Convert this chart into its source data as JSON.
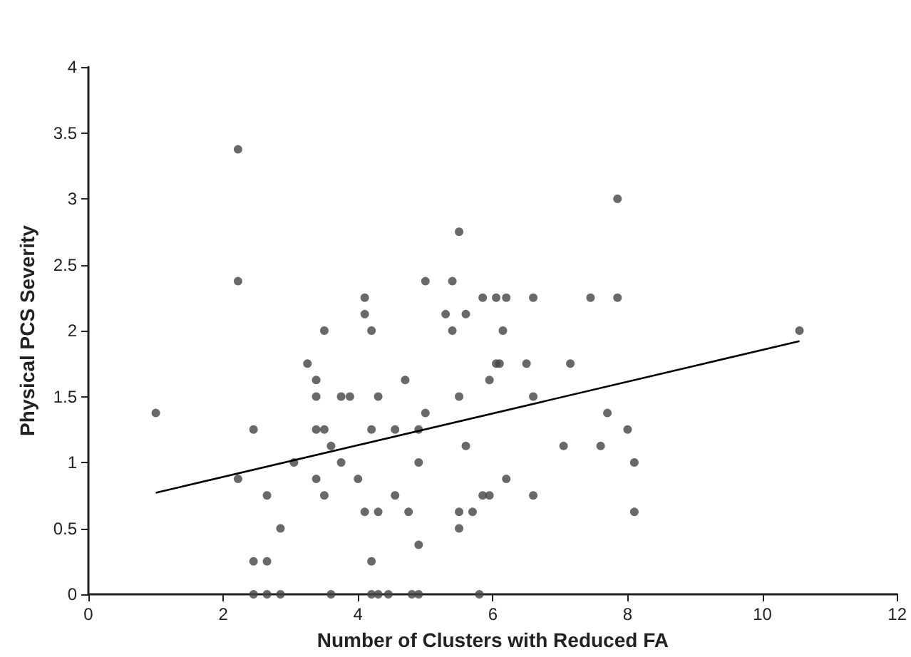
{
  "chart_data": {
    "type": "scatter",
    "xlabel": "Number of Clusters with Reduced FA",
    "ylabel": "Physical PCS Severity",
    "xlim": [
      0,
      12
    ],
    "xticks": [
      0,
      2,
      4,
      6,
      8,
      10,
      12
    ],
    "ylim": [
      0,
      4
    ],
    "yticks": [
      0,
      0.5,
      1,
      1.5,
      2,
      2.5,
      3,
      3.5,
      4
    ],
    "grid": false,
    "marker": "circle",
    "series": [
      {
        "color": "#444444",
        "x": [
          1.0,
          2.22,
          2.22,
          2.22,
          2.45,
          2.45,
          2.45,
          2.65,
          2.65,
          2.65,
          2.85,
          2.85,
          3.05,
          3.25,
          3.38,
          3.38,
          3.38,
          3.38,
          3.5,
          3.5,
          3.5,
          3.6,
          3.6,
          3.75,
          3.75,
          3.88,
          4.0,
          4.1,
          4.1,
          4.1,
          4.2,
          4.2,
          4.2,
          4.2,
          4.3,
          4.3,
          4.3,
          4.45,
          4.55,
          4.55,
          4.7,
          4.75,
          4.8,
          4.9,
          4.9,
          4.9,
          4.9,
          5.0,
          5.0,
          5.3,
          5.4,
          5.4,
          5.5,
          5.5,
          5.5,
          5.5,
          5.6,
          5.6,
          5.7,
          5.8,
          5.85,
          5.85,
          5.95,
          5.95,
          6.05,
          6.05,
          6.1,
          6.15,
          6.2,
          6.2,
          6.5,
          6.6,
          6.6,
          6.6,
          7.05,
          7.15,
          7.45,
          7.6,
          7.7,
          7.85,
          7.85,
          8.0,
          8.1,
          8.1,
          10.55
        ],
        "values": [
          1.375,
          3.375,
          2.375,
          0.875,
          1.25,
          0.25,
          0,
          0.75,
          0.25,
          0,
          0.5,
          0,
          1.0,
          1.75,
          1.625,
          1.5,
          1.25,
          0.875,
          2.0,
          1.25,
          0.75,
          1.125,
          0,
          1.5,
          1.0,
          1.5,
          0.875,
          2.25,
          2.125,
          0.625,
          2.0,
          1.25,
          0.25,
          0,
          1.5,
          0.625,
          0,
          0,
          1.25,
          0.75,
          1.625,
          0.625,
          0,
          1.25,
          1.0,
          0.375,
          0,
          2.375,
          1.375,
          2.125,
          2.375,
          2.0,
          2.75,
          1.5,
          0.625,
          0.5,
          2.125,
          1.125,
          0.625,
          0,
          2.25,
          0.75,
          1.625,
          0.75,
          2.25,
          1.75,
          1.75,
          2.0,
          2.25,
          0.875,
          1.75,
          2.25,
          1.5,
          0.75,
          1.125,
          1.75,
          2.25,
          1.125,
          1.375,
          3.0,
          2.25,
          1.25,
          1.0,
          0.625,
          2.0
        ]
      },
      {
        "type": "line",
        "color": "#000000",
        "marker": "none",
        "x": [
          1.0,
          10.55
        ],
        "values": [
          0.77,
          1.92
        ]
      }
    ]
  }
}
